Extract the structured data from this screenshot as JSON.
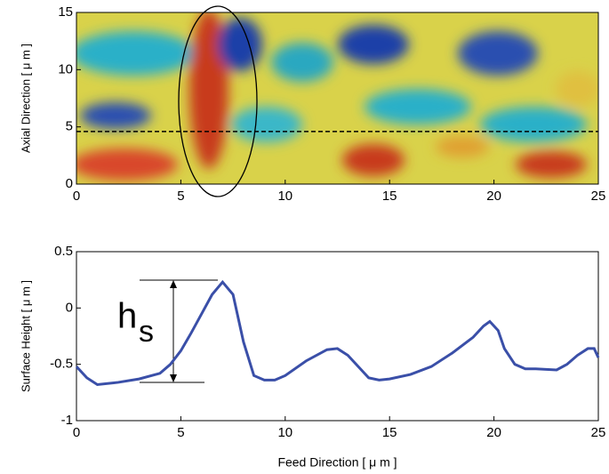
{
  "chart_data": [
    {
      "type": "surface-map",
      "ylabel": "Axial Direction [ μ m ]",
      "xlim": [
        0,
        25
      ],
      "xticks": [
        0,
        5,
        10,
        15,
        20,
        25
      ],
      "ylim": [
        0,
        15
      ],
      "yticks": [
        0,
        5,
        10,
        15
      ],
      "section_y": 4.6
    },
    {
      "type": "line",
      "xlabel": "Feed Direction [ μ m ]",
      "ylabel": "Surface Height [ μ m ]",
      "xlim": [
        0,
        25
      ],
      "xticks": [
        0,
        5,
        10,
        15,
        20,
        25
      ],
      "ylim": [
        -1,
        0.5
      ],
      "yticks": [
        -1,
        -0.5,
        0,
        0.5
      ],
      "annotation": {
        "text": "h",
        "subscript": "s"
      },
      "x": [
        0,
        0.5,
        1,
        2,
        3,
        4,
        4.5,
        5,
        5.5,
        6,
        6.5,
        7,
        7.5,
        8,
        8.5,
        9,
        9.5,
        10,
        11,
        12,
        12.5,
        13,
        14,
        14.5,
        15,
        16,
        17,
        18,
        19,
        19.5,
        19.8,
        20.2,
        20.5,
        21,
        21.5,
        22,
        23,
        23.5,
        24,
        24.5,
        24.8,
        25
      ],
      "series": [
        {
          "color": "#3a4fa8",
          "values": [
            -0.52,
            -0.62,
            -0.68,
            -0.66,
            -0.63,
            -0.58,
            -0.5,
            -0.38,
            -0.22,
            -0.05,
            0.12,
            0.23,
            0.12,
            -0.3,
            -0.6,
            -0.64,
            -0.64,
            -0.6,
            -0.47,
            -0.37,
            -0.36,
            -0.42,
            -0.62,
            -0.64,
            -0.63,
            -0.59,
            -0.52,
            -0.4,
            -0.26,
            -0.16,
            -0.12,
            -0.2,
            -0.36,
            -0.5,
            -0.54,
            -0.54,
            -0.55,
            -0.5,
            -0.42,
            -0.36,
            -0.36,
            -0.44
          ]
        }
      ]
    }
  ]
}
